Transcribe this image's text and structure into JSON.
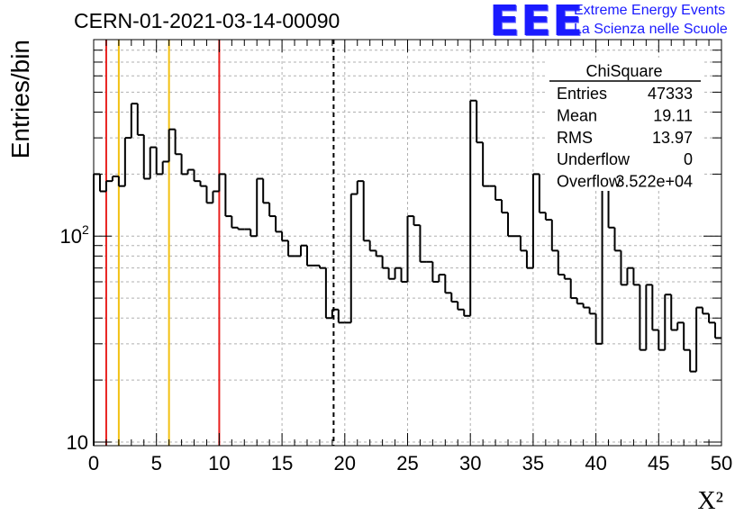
{
  "header": {
    "run_title": "CERN-01-2021-03-14-00090",
    "logo_text": "EEE",
    "logo_line1": "Extreme Energy Events",
    "logo_line2": "La Scienza nelle Scuole"
  },
  "colors": {
    "logo_blue": "#1a1aff",
    "histogram": "#000000",
    "grid": "#b0b0b0",
    "red_line": "#e8201e",
    "yellow_line": "#f2c012"
  },
  "stats_box": {
    "title": "ChiSquare",
    "rows": [
      {
        "label": "Entries",
        "value": "47333"
      },
      {
        "label": "Mean",
        "value": "19.11"
      },
      {
        "label": "RMS",
        "value": "13.97"
      },
      {
        "label": "Underflow",
        "value": "0"
      },
      {
        "label": "Overflow",
        "value": "3.522e+04"
      }
    ]
  },
  "chart_data": {
    "type": "histogram",
    "xlabel": "X²",
    "ylabel": "Entries/bin",
    "xlim": [
      0,
      50
    ],
    "ylim": [
      9.6,
      900
    ],
    "yscale": "log",
    "grid": true,
    "x_ticks": [
      "0",
      "5",
      "10",
      "15",
      "20",
      "25",
      "30",
      "35",
      "40",
      "45",
      "50"
    ],
    "y_tick_labels": [
      "10",
      "10²"
    ],
    "bin_width": 0.5,
    "values": [
      200,
      165,
      185,
      195,
      175,
      300,
      440,
      310,
      190,
      270,
      200,
      230,
      330,
      250,
      200,
      210,
      185,
      175,
      145,
      165,
      200,
      125,
      110,
      108,
      108,
      100,
      190,
      145,
      125,
      105,
      95,
      80,
      80,
      90,
      72,
      72,
      70,
      40,
      44,
      38,
      38,
      160,
      185,
      95,
      85,
      80,
      70,
      62,
      70,
      60,
      125,
      113,
      75,
      75,
      60,
      65,
      53,
      48,
      44,
      41,
      455,
      285,
      175,
      175,
      150,
      130,
      100,
      100,
      85,
      70,
      200,
      130,
      120,
      85,
      65,
      62,
      50,
      47,
      45,
      42,
      30,
      185,
      110,
      85,
      58,
      70,
      58,
      28,
      58,
      35,
      28,
      52,
      35,
      38,
      28,
      22,
      45,
      42,
      38,
      32
    ],
    "vlines": [
      {
        "x": 1.0,
        "color": "red"
      },
      {
        "x": 2.0,
        "color": "yellow"
      },
      {
        "x": 6.0,
        "color": "yellow"
      },
      {
        "x": 10.0,
        "color": "red"
      },
      {
        "x": 19.11,
        "color": "black",
        "style": "dashed"
      }
    ]
  }
}
